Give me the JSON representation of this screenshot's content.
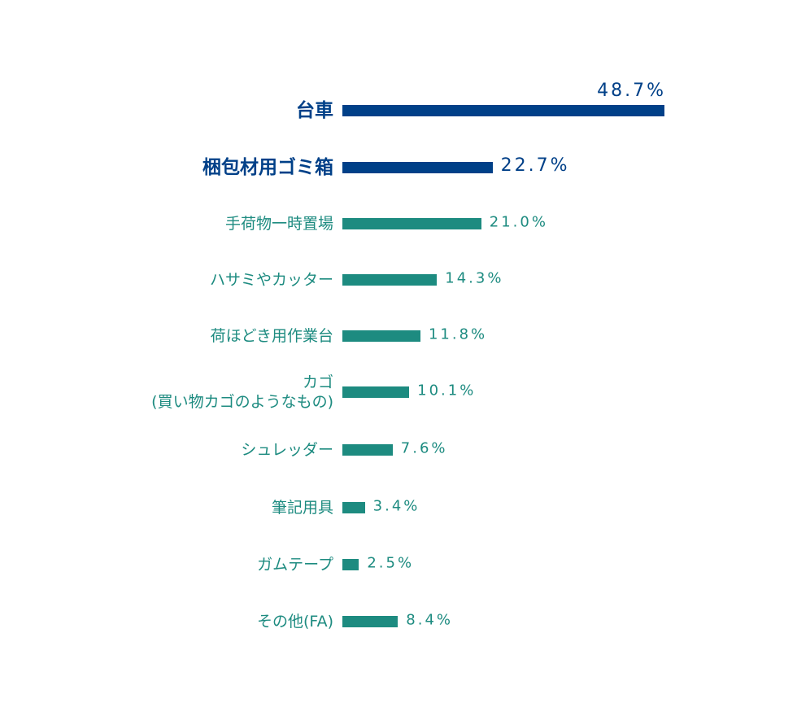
{
  "chart_data": {
    "type": "bar",
    "orientation": "horizontal",
    "categories": [
      "台車",
      "梱包材用ゴミ箱",
      "手荷物一時置場",
      "ハサミやカッター",
      "荷ほどき用作業台",
      "カゴ\n(買い物カゴのようなもの)",
      "シュレッダー",
      "筆記用具",
      "ガムテープ",
      "その他(FA)"
    ],
    "values": [
      48.7,
      22.7,
      21.0,
      14.3,
      11.8,
      10.1,
      7.6,
      3.4,
      2.5,
      8.4
    ],
    "value_labels": [
      "48.7%",
      "22.7%",
      "21.0%",
      "14.3%",
      "11.8%",
      "10.1%",
      "7.6%",
      "3.4%",
      "2.5%",
      "8.4%"
    ],
    "colors": [
      "#004088",
      "#004088",
      "#1d8b80",
      "#1d8b80",
      "#1d8b80",
      "#1d8b80",
      "#1d8b80",
      "#1d8b80",
      "#1d8b80",
      "#1d8b80"
    ]
  }
}
